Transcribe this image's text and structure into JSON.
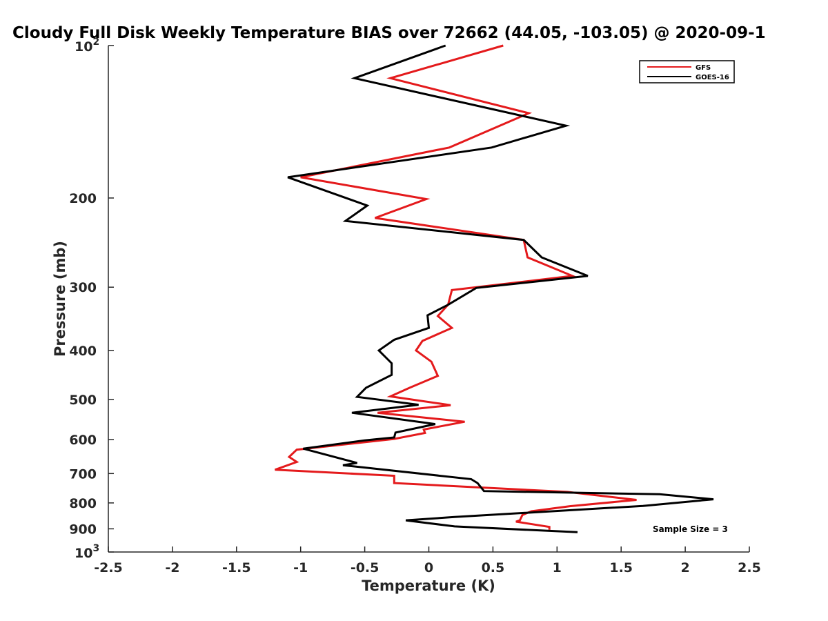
{
  "chart_data": {
    "type": "line",
    "title": "Cloudy Full Disk Weekly Temperature BIAS over 72662 (44.05, -103.05) @ 2020-09-1",
    "xlabel": "Temperature (K)",
    "ylabel": "Pressure (mb)",
    "xlim": [
      -2.5,
      2.5
    ],
    "ylim": [
      100,
      1000
    ],
    "y_scale": "log",
    "y_reversed": true,
    "x_ticks": [
      "-2.5",
      "-2",
      "-1.5",
      "-1",
      "-0.5",
      "0",
      "0.5",
      "1",
      "1.5",
      "2",
      "2.5"
    ],
    "x_tick_values": [
      -2.5,
      -2,
      -1.5,
      -1,
      -0.5,
      0,
      0.5,
      1,
      1.5,
      2,
      2.5
    ],
    "y_ticks": [
      {
        "value": 100,
        "base": "10",
        "exp": "2"
      },
      {
        "value": 200,
        "label": "200"
      },
      {
        "value": 300,
        "label": "300"
      },
      {
        "value": 400,
        "label": "400"
      },
      {
        "value": 500,
        "label": "500"
      },
      {
        "value": 600,
        "label": "600"
      },
      {
        "value": 700,
        "label": "700"
      },
      {
        "value": 800,
        "label": "800"
      },
      {
        "value": 900,
        "label": "900"
      },
      {
        "value": 1000,
        "base": "10",
        "exp": "3"
      }
    ],
    "legend_position": "top-right",
    "grid": false,
    "annotation": "Sample Size = 3",
    "series": [
      {
        "name": "GFS",
        "color": "#e41a1c",
        "points": [
          [
            0.58,
            100
          ],
          [
            -0.3,
            116
          ],
          [
            0.78,
            136
          ],
          [
            0.16,
            159
          ],
          [
            -1.0,
            182
          ],
          [
            -0.02,
            201
          ],
          [
            -0.42,
            219
          ],
          [
            0.74,
            242
          ],
          [
            0.77,
            262
          ],
          [
            1.12,
            285
          ],
          [
            0.18,
            304
          ],
          [
            0.15,
            325
          ],
          [
            0.07,
            342
          ],
          [
            0.18,
            361
          ],
          [
            -0.05,
            383
          ],
          [
            -0.1,
            400
          ],
          [
            0.02,
            421
          ],
          [
            0.07,
            449
          ],
          [
            -0.15,
            474
          ],
          [
            -0.3,
            493
          ],
          [
            0.17,
            513
          ],
          [
            -0.4,
            531
          ],
          [
            0.28,
            553
          ],
          [
            -0.04,
            573
          ],
          [
            -0.03,
            582
          ],
          [
            -0.27,
            598
          ],
          [
            -1.03,
            628
          ],
          [
            -1.09,
            649
          ],
          [
            -1.03,
            664
          ],
          [
            -1.2,
            688
          ],
          [
            -0.27,
            707
          ],
          [
            -0.27,
            731
          ],
          [
            1.08,
            761
          ],
          [
            1.62,
            789
          ],
          [
            1.1,
            812
          ],
          [
            0.8,
            831
          ],
          [
            0.73,
            845
          ],
          [
            0.71,
            866
          ],
          [
            0.68,
            871
          ],
          [
            0.94,
            892
          ],
          [
            0.94,
            904
          ]
        ]
      },
      {
        "name": "GOES-16",
        "color": "#000000",
        "points": [
          [
            0.13,
            100
          ],
          [
            -0.58,
            116
          ],
          [
            1.07,
            144
          ],
          [
            0.49,
            159
          ],
          [
            -1.1,
            182
          ],
          [
            -0.48,
            207
          ],
          [
            -0.65,
            222
          ],
          [
            0.74,
            242
          ],
          [
            0.88,
            262
          ],
          [
            1.24,
            285
          ],
          [
            0.37,
            301
          ],
          [
            0.15,
            325
          ],
          [
            -0.01,
            341
          ],
          [
            0.0,
            361
          ],
          [
            -0.27,
            381
          ],
          [
            -0.39,
            400
          ],
          [
            -0.29,
            424
          ],
          [
            -0.29,
            447
          ],
          [
            -0.49,
            474
          ],
          [
            -0.56,
            494
          ],
          [
            -0.08,
            512
          ],
          [
            -0.6,
            531
          ],
          [
            0.05,
            559
          ],
          [
            -0.26,
            581
          ],
          [
            -0.27,
            594
          ],
          [
            -0.5,
            602
          ],
          [
            -0.98,
            625
          ],
          [
            -0.56,
            667
          ],
          [
            -0.67,
            674
          ],
          [
            0.33,
            718
          ],
          [
            0.38,
            731
          ],
          [
            0.43,
            758
          ],
          [
            1.8,
            769
          ],
          [
            2.22,
            787
          ],
          [
            1.67,
            811
          ],
          [
            0.2,
            853
          ],
          [
            -0.18,
            866
          ],
          [
            0.2,
            890
          ],
          [
            1.16,
            914
          ]
        ]
      }
    ]
  }
}
